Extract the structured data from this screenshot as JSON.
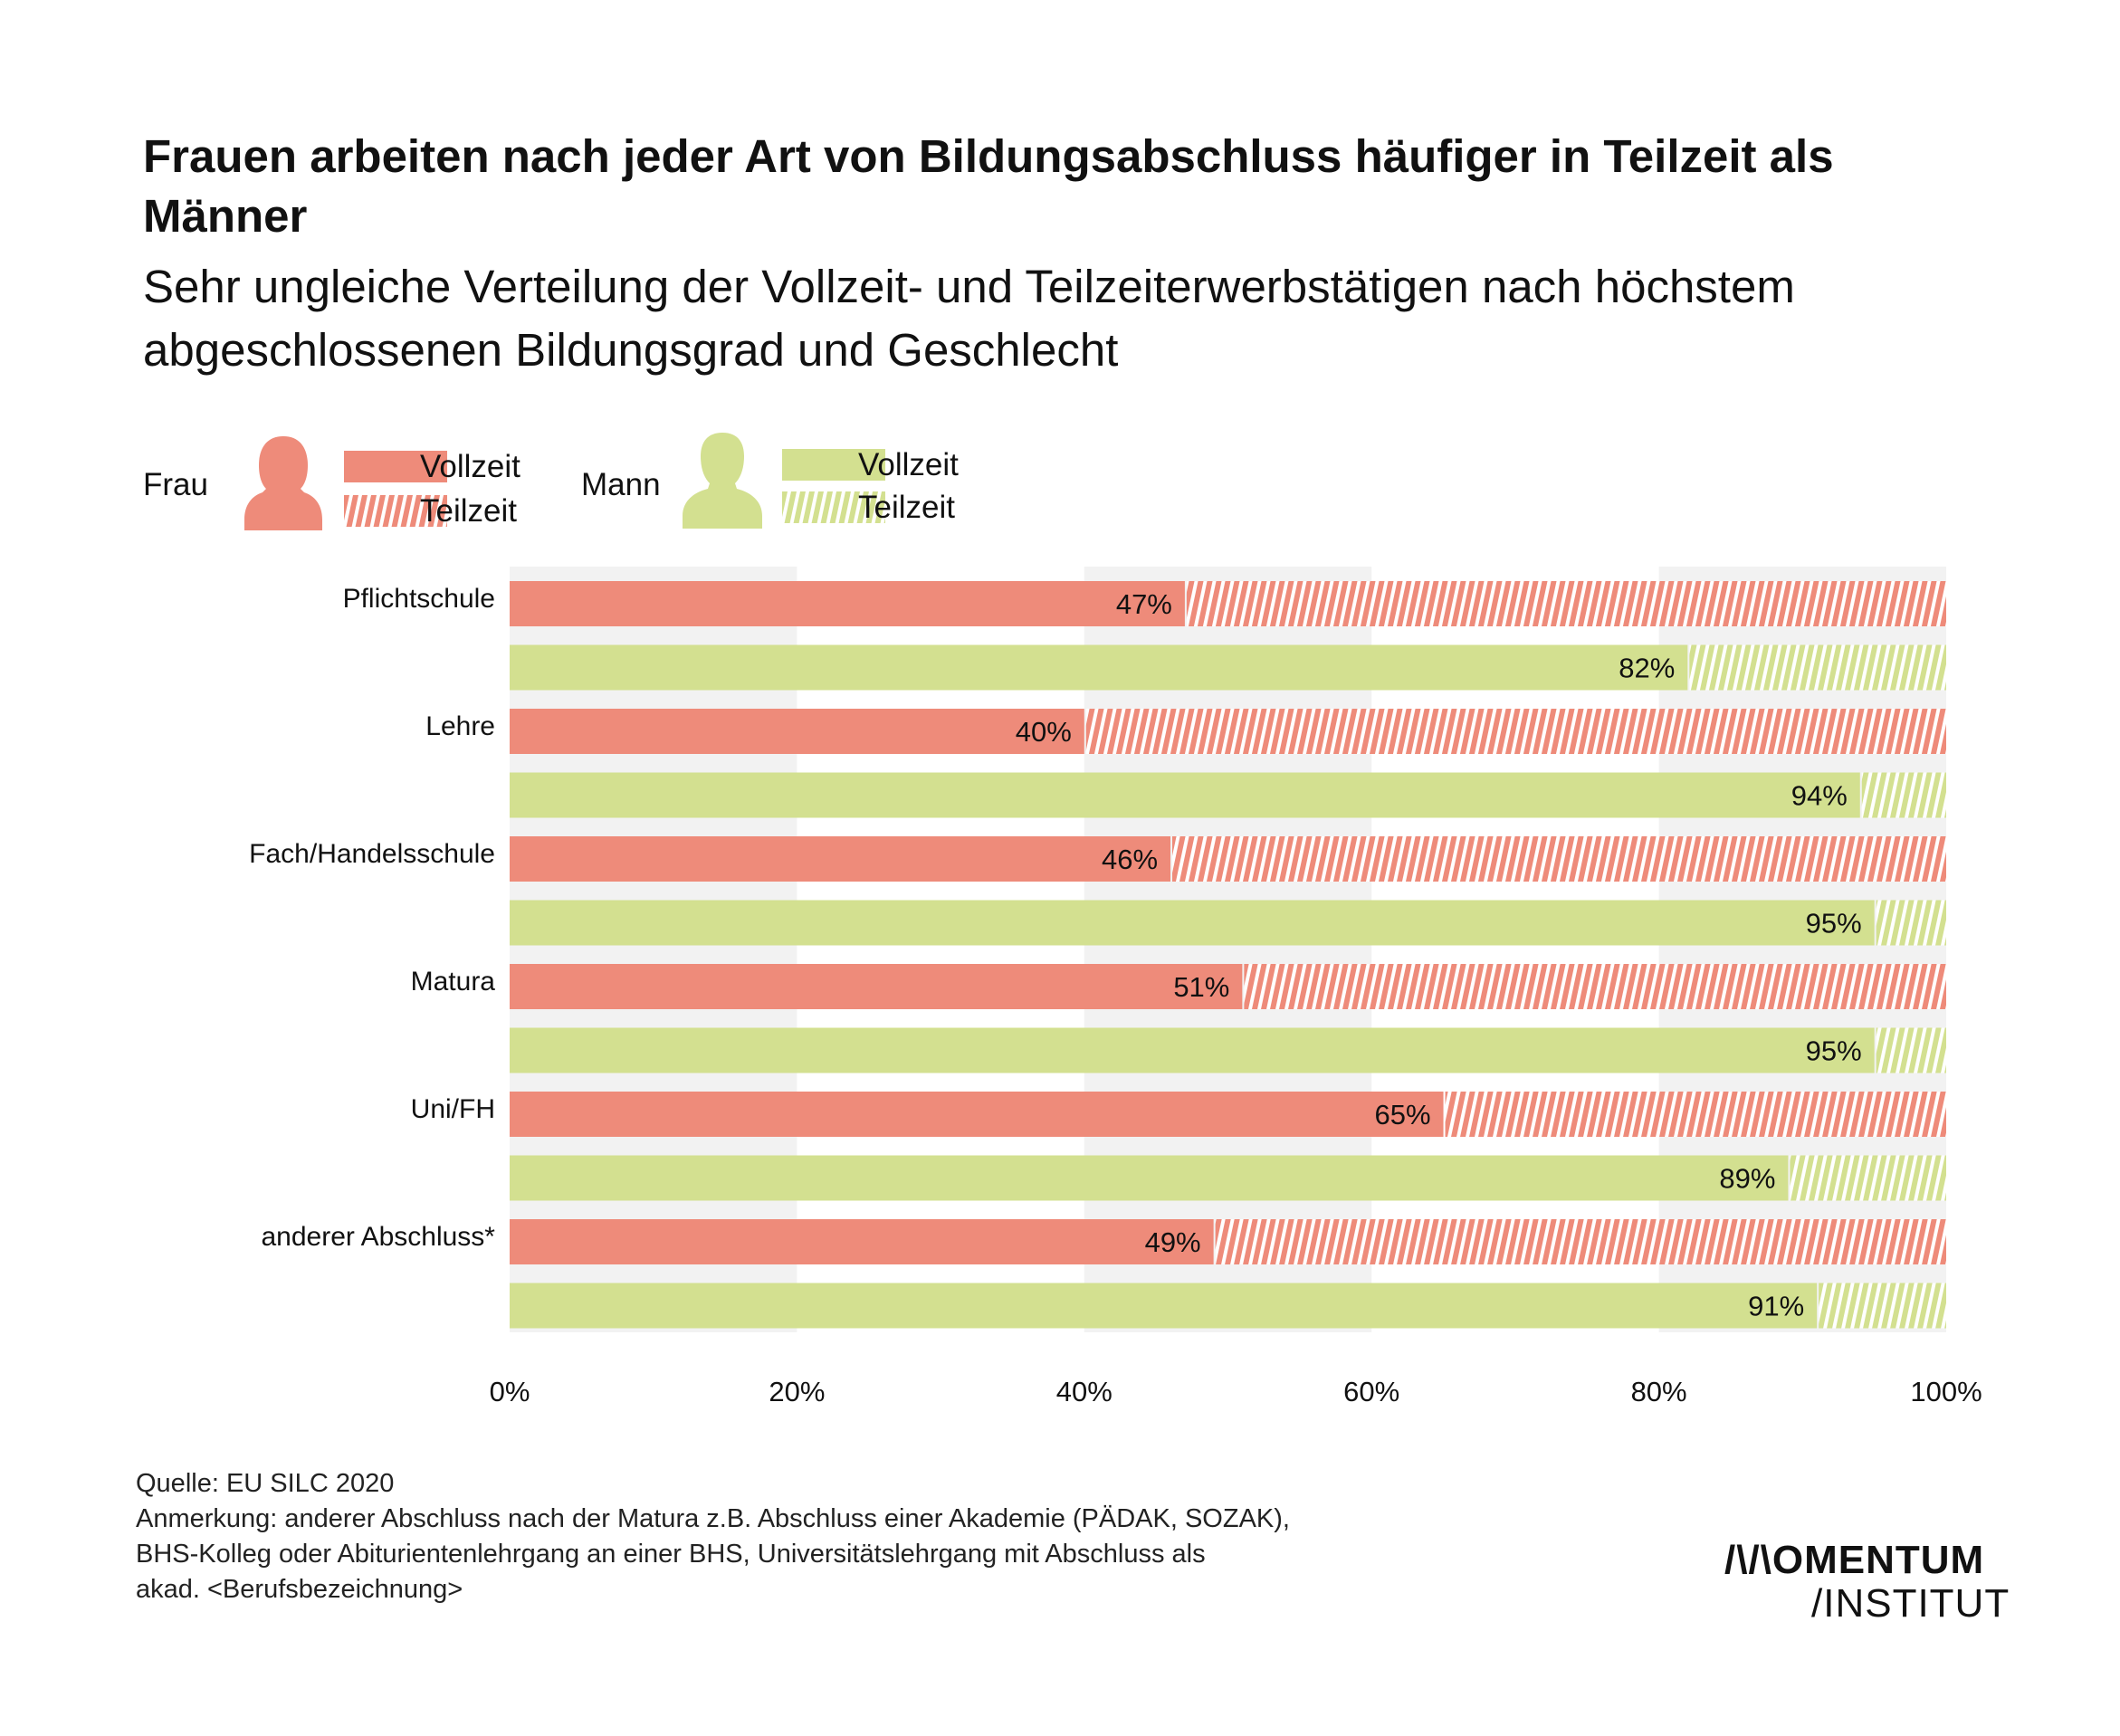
{
  "title": "Frauen arbeiten nach jeder Art von Bildungsabschluss häufiger in Teilzeit als Männer",
  "subtitle": "Sehr ungleiche Verteilung der Vollzeit- und Teilzeiterwerbstätigen nach höchstem abgeschlossenen Bildungsgrad und Geschlecht",
  "legend": {
    "frau_label": "Frau",
    "mann_label": "Mann",
    "vollzeit": "Vollzeit",
    "teilzeit": "Teilzeit"
  },
  "colors": {
    "frau": "#EE8B7A",
    "mann": "#D3E090",
    "band": "#F2F2F2"
  },
  "chart_data": {
    "type": "bar",
    "orientation": "horizontal",
    "stacked": true,
    "categories": [
      "Pflichtschule",
      "Lehre",
      "Fach/Handelsschule",
      "Matura",
      "Uni/FH",
      "anderer Abschluss*"
    ],
    "series": [
      {
        "name": "Frau",
        "vollzeit": [
          47,
          40,
          46,
          51,
          65,
          49
        ]
      },
      {
        "name": "Mann",
        "vollzeit": [
          82,
          94,
          95,
          95,
          89,
          91
        ]
      }
    ],
    "value_labels": {
      "Frau": [
        "47%",
        "40%",
        "46%",
        "51%",
        "65%",
        "49%"
      ],
      "Mann": [
        "82%",
        "94%",
        "95%",
        "95%",
        "89%",
        "91%"
      ]
    },
    "xlim": [
      0,
      100
    ],
    "xticks": [
      "0%",
      "20%",
      "40%",
      "60%",
      "80%",
      "100%"
    ],
    "grid": "alternating bands",
    "legend_position": "top-left"
  },
  "footer": {
    "source": "Quelle: EU SILC 2020",
    "note_line1": "Anmerkung: anderer Abschluss nach der Matura z.B. Abschluss einer Akademie (PÄDAK, SOZAK),",
    "note_line2": "BHS-Kolleg oder Abiturientenlehrgang an einer BHS, Universitätslehrgang mit Abschluss als",
    "note_line3": "akad. <Berufsbezeichnung>"
  },
  "logo": {
    "line1": "/\\/\\OMENTUM",
    "line2": "/INSTITUT"
  }
}
